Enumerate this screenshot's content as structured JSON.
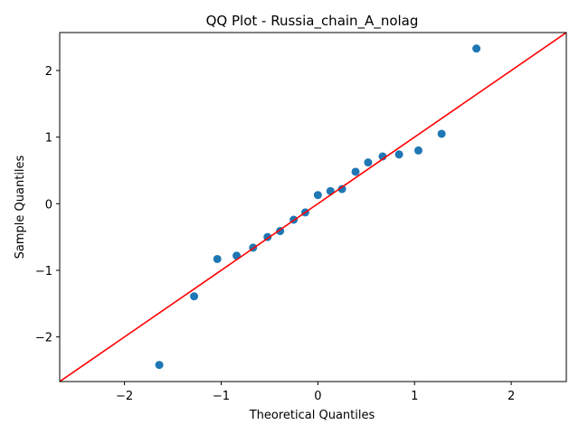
{
  "chart_data": {
    "type": "scatter",
    "title": "QQ Plot - Russia_chain_A_nolag",
    "xlabel": "Theoretical Quantiles",
    "ylabel": "Sample Quantiles",
    "xlim": [
      -2.67,
      2.57
    ],
    "ylim": [
      -2.67,
      2.57
    ],
    "xticks": [
      -2,
      -1,
      0,
      1,
      2
    ],
    "yticks": [
      -2,
      -1,
      0,
      1,
      2
    ],
    "xtick_labels": [
      "−2",
      "−1",
      "0",
      "1",
      "2"
    ],
    "ytick_labels": [
      "−2",
      "−1",
      "0",
      "1",
      "2"
    ],
    "grid": false,
    "series": [
      {
        "name": "samples",
        "marker_color": "#1f77b4",
        "x": [
          -1.64,
          -1.28,
          -1.04,
          -0.84,
          -0.67,
          -0.52,
          -0.39,
          -0.25,
          -0.13,
          0.0,
          0.13,
          0.25,
          0.39,
          0.52,
          0.67,
          0.84,
          1.04,
          1.28,
          1.64
        ],
        "y": [
          -2.42,
          -1.39,
          -0.83,
          -0.78,
          -0.66,
          -0.5,
          -0.41,
          -0.24,
          -0.13,
          0.13,
          0.19,
          0.22,
          0.48,
          0.62,
          0.71,
          0.74,
          0.8,
          1.05,
          2.33
        ]
      }
    ],
    "reference_line": {
      "name": "45-degree line",
      "color": "#ff0000",
      "slope": 1,
      "intercept": 0
    }
  }
}
